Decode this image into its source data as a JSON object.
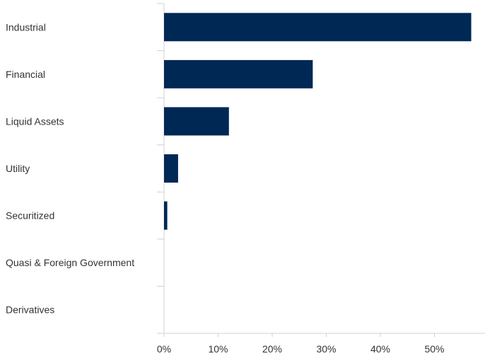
{
  "chart_data": {
    "type": "bar",
    "orientation": "horizontal",
    "title": "",
    "xlabel": "",
    "ylabel": "",
    "categories": [
      "Industrial",
      "Financial",
      "Liquid Assets",
      "Utility",
      "Securitized",
      "Quasi & Foreign Government",
      "Derivatives"
    ],
    "values": [
      56.8,
      27.5,
      12.0,
      2.6,
      0.6,
      0.0,
      0.0
    ],
    "xlim": [
      0,
      57
    ],
    "x_ticks": [
      0,
      10,
      20,
      30,
      40,
      50
    ],
    "x_tick_labels": [
      "0%",
      "10%",
      "20%",
      "30%",
      "40%",
      "50%"
    ],
    "grid": false,
    "legend": "none",
    "colors": {
      "bar": "#002855",
      "axis": "#d0d0d0",
      "text": "#333333"
    }
  }
}
